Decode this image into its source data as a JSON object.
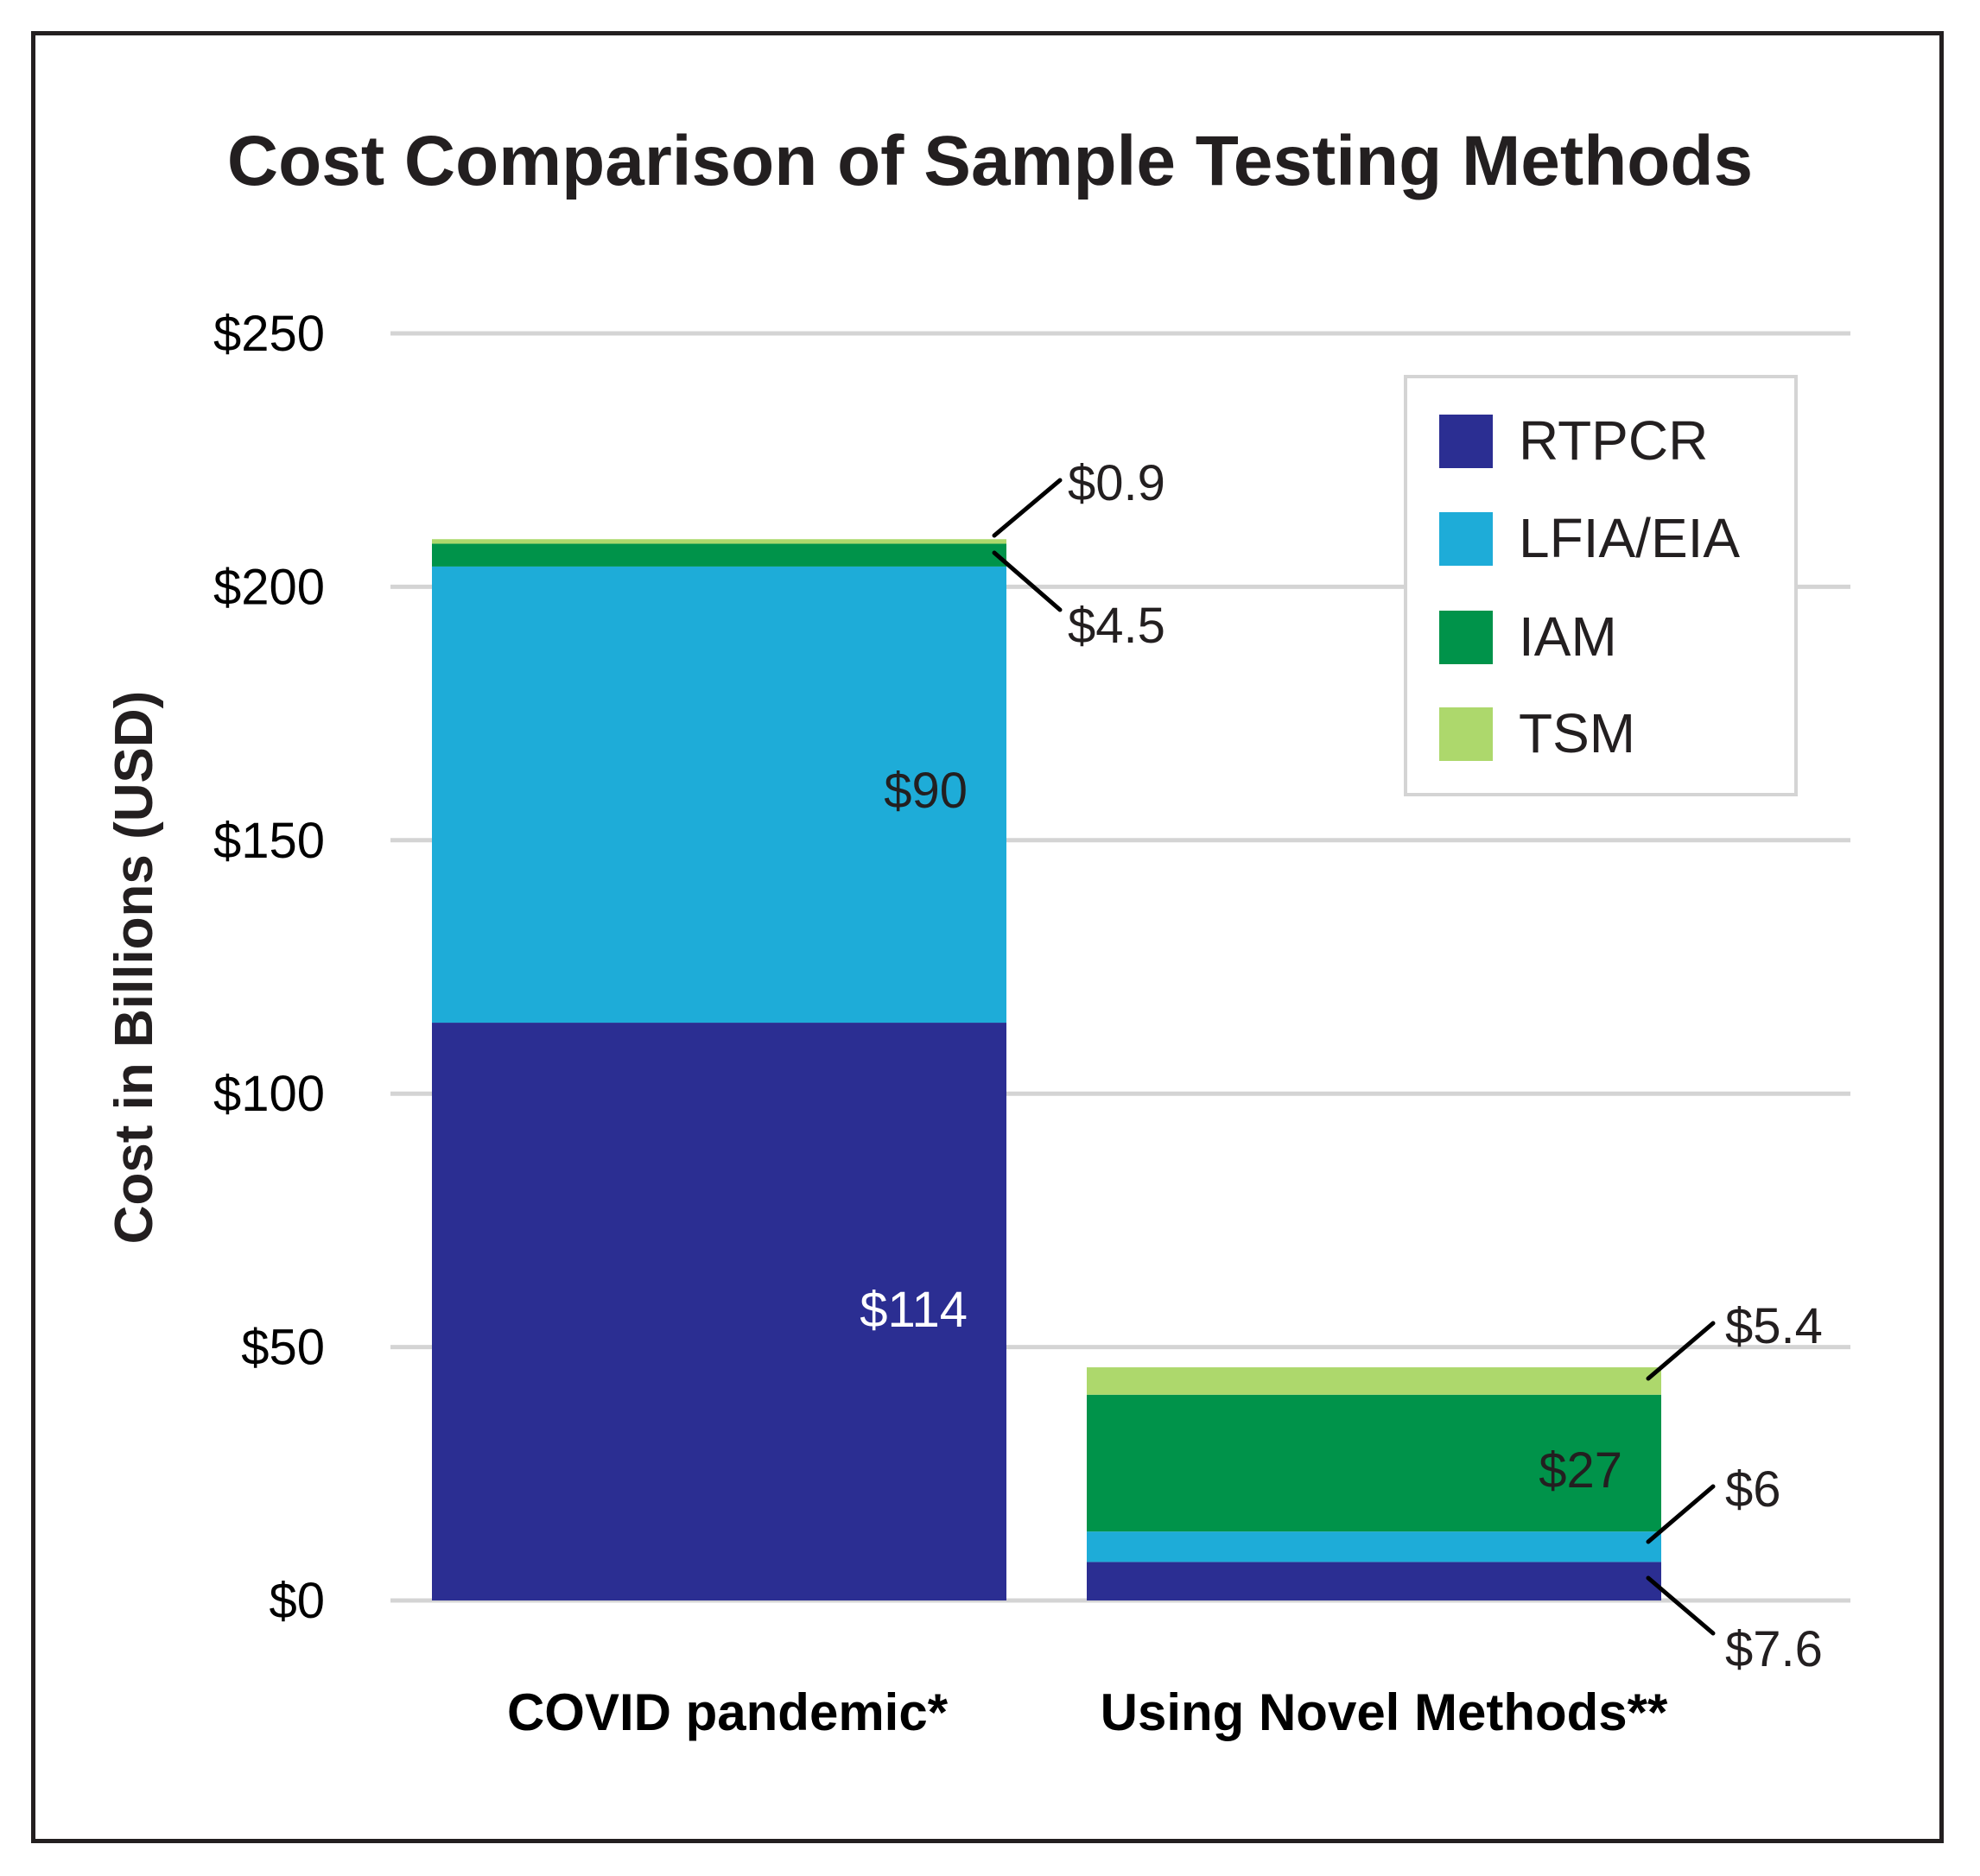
{
  "chart_data": {
    "type": "bar",
    "stacked": true,
    "title": "Cost Comparison of Sample Testing Methods",
    "xlabel": "",
    "ylabel": "Cost in Billions (USD)",
    "ylim": [
      0,
      250
    ],
    "yticks": [
      0,
      50,
      100,
      150,
      200,
      250
    ],
    "ytick_labels": [
      "$0",
      "$50",
      "$100",
      "$150",
      "$200",
      "$250"
    ],
    "grid": true,
    "legend_position": "top-right",
    "categories": [
      "COVID pandemic*",
      "Using Novel Methods**"
    ],
    "series": [
      {
        "name": "RTPCR",
        "color": "#2b2e92",
        "values": [
          114,
          7.6
        ],
        "labels": [
          "$114",
          "$7.6"
        ]
      },
      {
        "name": "LFIA/EIA",
        "color": "#1eacd8",
        "values": [
          90,
          6
        ],
        "labels": [
          "$90",
          "$6"
        ]
      },
      {
        "name": "IAM",
        "color": "#00934a",
        "values": [
          4.5,
          27
        ],
        "labels": [
          "$4.5",
          "$27"
        ]
      },
      {
        "name": "TSM",
        "color": "#add86c",
        "values": [
          0.9,
          5.4
        ],
        "labels": [
          "$0.9",
          "$5.4"
        ]
      }
    ],
    "grid_color": "#d4d4d4",
    "text_color": "#231f20"
  }
}
